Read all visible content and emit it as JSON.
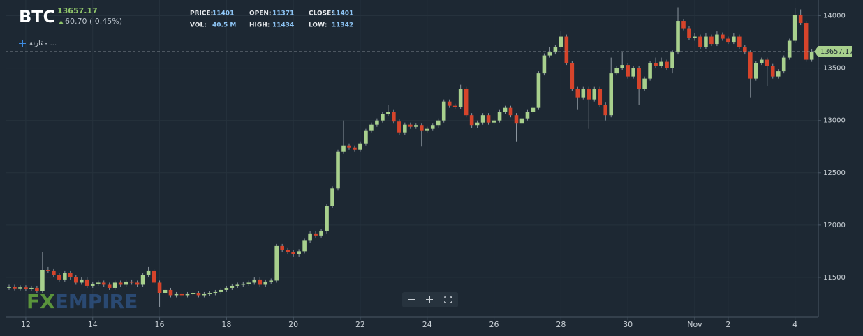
{
  "header": {
    "symbol": "BTC",
    "price": "13657.17",
    "change": "60.70 ( 0.45%)",
    "fields": [
      {
        "label": "PRICE:",
        "value": "11401"
      },
      {
        "label": "OPEN:",
        "value": "11371"
      },
      {
        "label": "CLOSE:",
        "value": "11401"
      },
      {
        "label": "VOL:",
        "value": "40.5 M"
      },
      {
        "label": "HIGH:",
        "value": "11434"
      },
      {
        "label": "LOW:",
        "value": "11342"
      }
    ]
  },
  "compare": "مقارنة ...",
  "watermark": [
    "FX",
    "EMPIRE"
  ],
  "chart_data": {
    "type": "candlestick",
    "x": [
      -12,
      -8,
      -4,
      0,
      4,
      8,
      12,
      16,
      20,
      24,
      28,
      32,
      36,
      40,
      44,
      48,
      52,
      56,
      60,
      64,
      68,
      72,
      76,
      80,
      84,
      88,
      92,
      96,
      100,
      104,
      108,
      112,
      116,
      120,
      124,
      128,
      132,
      136,
      140,
      144,
      148,
      152,
      156,
      160,
      164,
      168,
      172,
      176,
      180,
      184,
      188,
      192,
      196,
      200,
      204,
      208,
      212,
      216,
      220,
      224,
      228,
      232,
      236,
      240,
      244,
      248,
      252,
      256,
      260,
      264,
      268,
      272,
      276,
      280,
      284,
      288,
      292,
      296,
      300,
      304,
      308,
      312,
      316,
      320,
      324,
      328,
      332,
      336,
      340,
      344,
      348,
      352,
      356,
      360,
      364,
      368,
      372,
      376,
      380,
      384,
      388,
      392,
      396,
      400,
      404,
      408,
      412,
      416,
      420,
      424,
      428,
      432,
      436,
      440,
      444,
      448,
      452,
      456,
      460,
      464,
      468,
      472,
      476,
      480,
      484,
      488,
      492,
      496,
      500,
      504,
      508,
      512,
      516,
      520,
      524,
      528,
      532,
      536,
      540,
      544,
      548,
      552,
      556,
      560,
      564
    ],
    "series": [
      {
        "name": "BTC",
        "up_color": "#a8d08d",
        "down_color": "#d6442b",
        "ohlc": [
          [
            11400,
            11430,
            11380,
            11410
          ],
          [
            11410,
            11430,
            11375,
            11395
          ],
          [
            11395,
            11425,
            11375,
            11405
          ],
          [
            11405,
            11425,
            11370,
            11390
          ],
          [
            11390,
            11420,
            11370,
            11400
          ],
          [
            11400,
            11420,
            11350,
            11370
          ],
          [
            11370,
            11740,
            11350,
            11570
          ],
          [
            11570,
            11600,
            11540,
            11560
          ],
          [
            11560,
            11580,
            11500,
            11520
          ],
          [
            11520,
            11540,
            11460,
            11480
          ],
          [
            11480,
            11560,
            11460,
            11540
          ],
          [
            11540,
            11560,
            11480,
            11500
          ],
          [
            11500,
            11520,
            11430,
            11450
          ],
          [
            11450,
            11500,
            11430,
            11480
          ],
          [
            11480,
            11500,
            11400,
            11420
          ],
          [
            11420,
            11460,
            11400,
            11440
          ],
          [
            11440,
            11470,
            11420,
            11450
          ],
          [
            11450,
            11470,
            11410,
            11430
          ],
          [
            11430,
            11450,
            11380,
            11400
          ],
          [
            11400,
            11470,
            11380,
            11450
          ],
          [
            11450,
            11470,
            11410,
            11430
          ],
          [
            11430,
            11480,
            11410,
            11460
          ],
          [
            11460,
            11480,
            11430,
            11450
          ],
          [
            11450,
            11470,
            11410,
            11430
          ],
          [
            11430,
            11540,
            11410,
            11520
          ],
          [
            11520,
            11600,
            11500,
            11560
          ],
          [
            11560,
            11580,
            11430,
            11450
          ],
          [
            11450,
            11470,
            11220,
            11350
          ],
          [
            11350,
            11400,
            11330,
            11380
          ],
          [
            11380,
            11400,
            11310,
            11330
          ],
          [
            11330,
            11360,
            11310,
            11340
          ],
          [
            11340,
            11360,
            11310,
            11330
          ],
          [
            11330,
            11360,
            11310,
            11340
          ],
          [
            11340,
            11370,
            11320,
            11350
          ],
          [
            11350,
            11370,
            11310,
            11330
          ],
          [
            11330,
            11360,
            11310,
            11340
          ],
          [
            11340,
            11370,
            11320,
            11350
          ],
          [
            11350,
            11380,
            11330,
            11360
          ],
          [
            11360,
            11400,
            11340,
            11380
          ],
          [
            11380,
            11420,
            11360,
            11400
          ],
          [
            11400,
            11440,
            11380,
            11420
          ],
          [
            11420,
            11450,
            11400,
            11430
          ],
          [
            11430,
            11460,
            11410,
            11440
          ],
          [
            11440,
            11470,
            11420,
            11450
          ],
          [
            11450,
            11500,
            11430,
            11480
          ],
          [
            11480,
            11500,
            11410,
            11430
          ],
          [
            11430,
            11480,
            11410,
            11460
          ],
          [
            11460,
            11490,
            11440,
            11470
          ],
          [
            11470,
            11820,
            11450,
            11800
          ],
          [
            11800,
            11820,
            11740,
            11760
          ],
          [
            11760,
            11780,
            11720,
            11740
          ],
          [
            11740,
            11760,
            11700,
            11720
          ],
          [
            11720,
            11770,
            11700,
            11750
          ],
          [
            11750,
            11870,
            11730,
            11850
          ],
          [
            11850,
            11940,
            11830,
            11920
          ],
          [
            11920,
            11940,
            11880,
            11900
          ],
          [
            11900,
            11960,
            11880,
            11940
          ],
          [
            11940,
            12200,
            11920,
            12180
          ],
          [
            12180,
            12370,
            12160,
            12350
          ],
          [
            12350,
            12720,
            12330,
            12700
          ],
          [
            12700,
            13000,
            12680,
            12760
          ],
          [
            12760,
            12780,
            12720,
            12740
          ],
          [
            12740,
            12760,
            12700,
            12720
          ],
          [
            12720,
            12800,
            12700,
            12780
          ],
          [
            12780,
            12920,
            12760,
            12900
          ],
          [
            12900,
            12980,
            12880,
            12960
          ],
          [
            12960,
            13020,
            12940,
            13000
          ],
          [
            13000,
            13080,
            12980,
            13060
          ],
          [
            13060,
            13150,
            13040,
            13080
          ],
          [
            13080,
            13100,
            12970,
            12990
          ],
          [
            12990,
            13010,
            12860,
            12880
          ],
          [
            12880,
            12980,
            12860,
            12960
          ],
          [
            12960,
            12980,
            12920,
            12940
          ],
          [
            12940,
            12970,
            12920,
            12950
          ],
          [
            12950,
            12970,
            12750,
            12900
          ],
          [
            12900,
            12940,
            12880,
            12920
          ],
          [
            12920,
            12970,
            12900,
            12950
          ],
          [
            12950,
            13020,
            12930,
            13000
          ],
          [
            13000,
            13200,
            12980,
            13180
          ],
          [
            13180,
            13200,
            13120,
            13140
          ],
          [
            13140,
            13160,
            13110,
            13130
          ],
          [
            13130,
            13340,
            13110,
            13300
          ],
          [
            13300,
            13320,
            13030,
            13050
          ],
          [
            13050,
            13070,
            12930,
            12950
          ],
          [
            12950,
            13000,
            12930,
            12980
          ],
          [
            12980,
            13070,
            12960,
            13050
          ],
          [
            13050,
            13070,
            12960,
            12980
          ],
          [
            12980,
            13020,
            12960,
            13000
          ],
          [
            13000,
            13100,
            12980,
            13080
          ],
          [
            13080,
            13140,
            13060,
            13120
          ],
          [
            13120,
            13140,
            13030,
            13050
          ],
          [
            13050,
            13070,
            12800,
            12970
          ],
          [
            12970,
            13040,
            12950,
            13020
          ],
          [
            13020,
            13100,
            13000,
            13080
          ],
          [
            13080,
            13140,
            13060,
            13120
          ],
          [
            13120,
            13470,
            13100,
            13450
          ],
          [
            13450,
            13640,
            13430,
            13620
          ],
          [
            13620,
            13700,
            13600,
            13650
          ],
          [
            13650,
            13720,
            13630,
            13700
          ],
          [
            13700,
            13850,
            13680,
            13800
          ],
          [
            13800,
            13820,
            13530,
            13550
          ],
          [
            13550,
            13570,
            13280,
            13300
          ],
          [
            13300,
            13320,
            13100,
            13220
          ],
          [
            13220,
            13320,
            13200,
            13300
          ],
          [
            13300,
            13320,
            12920,
            13200
          ],
          [
            13200,
            13320,
            13180,
            13300
          ],
          [
            13300,
            13320,
            13130,
            13150
          ],
          [
            13150,
            13170,
            13000,
            13050
          ],
          [
            13050,
            13600,
            13030,
            13450
          ],
          [
            13450,
            13520,
            13430,
            13500
          ],
          [
            13500,
            13650,
            13480,
            13530
          ],
          [
            13530,
            13550,
            13400,
            13420
          ],
          [
            13420,
            13520,
            13400,
            13500
          ],
          [
            13500,
            13520,
            13150,
            13300
          ],
          [
            13300,
            13420,
            13280,
            13400
          ],
          [
            13400,
            13570,
            13380,
            13550
          ],
          [
            13550,
            13600,
            13500,
            13520
          ],
          [
            13520,
            13600,
            13500,
            13560
          ],
          [
            13560,
            13580,
            13480,
            13500
          ],
          [
            13500,
            13670,
            13450,
            13650
          ],
          [
            13650,
            14080,
            13630,
            13950
          ],
          [
            13950,
            13970,
            13860,
            13880
          ],
          [
            13880,
            13900,
            13770,
            13790
          ],
          [
            13790,
            13830,
            13760,
            13800
          ],
          [
            13800,
            13820,
            13680,
            13700
          ],
          [
            13700,
            13830,
            13680,
            13800
          ],
          [
            13800,
            13820,
            13710,
            13730
          ],
          [
            13730,
            13850,
            13710,
            13820
          ],
          [
            13820,
            13840,
            13760,
            13780
          ],
          [
            13780,
            13800,
            13730,
            13750
          ],
          [
            13750,
            13830,
            13730,
            13800
          ],
          [
            13800,
            13820,
            13680,
            13700
          ],
          [
            13700,
            13720,
            13630,
            13650
          ],
          [
            13650,
            13670,
            13220,
            13400
          ],
          [
            13400,
            13570,
            13380,
            13550
          ],
          [
            13550,
            13600,
            13530,
            13580
          ],
          [
            13580,
            13600,
            13330,
            13520
          ],
          [
            13520,
            13540,
            13400,
            13420
          ],
          [
            13420,
            13490,
            13400,
            13470
          ],
          [
            13470,
            13620,
            13450,
            13600
          ],
          [
            13600,
            13780,
            13580,
            13760
          ],
          [
            13760,
            14070,
            13740,
            14010
          ],
          [
            14010,
            14060,
            13910,
            13930
          ],
          [
            13930,
            13950,
            13560,
            13580
          ],
          [
            13580,
            13680,
            13560,
            13657
          ]
        ]
      }
    ],
    "xlim": [
      -14.5,
      568.7
    ],
    "xticks": [
      {
        "value": 0,
        "label": "12"
      },
      {
        "value": 48,
        "label": "14"
      },
      {
        "value": 96,
        "label": "16"
      },
      {
        "value": 144,
        "label": "18"
      },
      {
        "value": 192,
        "label": "20"
      },
      {
        "value": 240,
        "label": "22"
      },
      {
        "value": 288,
        "label": "24"
      },
      {
        "value": 336,
        "label": "26"
      },
      {
        "value": 384,
        "label": "28"
      },
      {
        "value": 432,
        "label": "30"
      },
      {
        "value": 480,
        "label": "Nov"
      },
      {
        "value": 504,
        "label": "2"
      },
      {
        "value": 552,
        "label": "4"
      }
    ],
    "ylim": [
      11120,
      14150
    ],
    "yticks": [
      11500,
      12000,
      12500,
      13000,
      13500,
      14000
    ],
    "last_price": 13657.17,
    "grid": true
  }
}
